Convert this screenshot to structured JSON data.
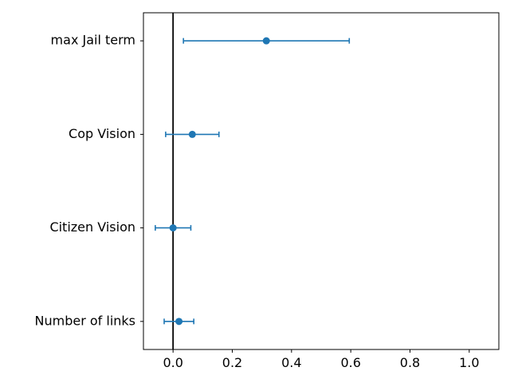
{
  "chart_data": {
    "type": "scatter",
    "subtype": "errorbar-forest",
    "categories": [
      "Number of links",
      "Citizen Vision",
      "Cop Vision",
      "max Jail term"
    ],
    "series": [
      {
        "values": [
          0.02,
          0.0,
          0.065,
          0.315
        ],
        "lower": [
          -0.03,
          -0.06,
          -0.025,
          0.035
        ],
        "upper": [
          0.07,
          0.06,
          0.155,
          0.595
        ]
      }
    ],
    "reference_line_x": 0.0,
    "xlim": [
      -0.1,
      1.1
    ],
    "xticks": [
      "0.0",
      "0.2",
      "0.4",
      "0.6",
      "0.8",
      "1.0"
    ],
    "title": "",
    "xlabel": "",
    "ylabel": "",
    "grid": false,
    "colors": {
      "series": "#1f77b4",
      "reference_line": "#000000",
      "axes": "#000000"
    }
  }
}
